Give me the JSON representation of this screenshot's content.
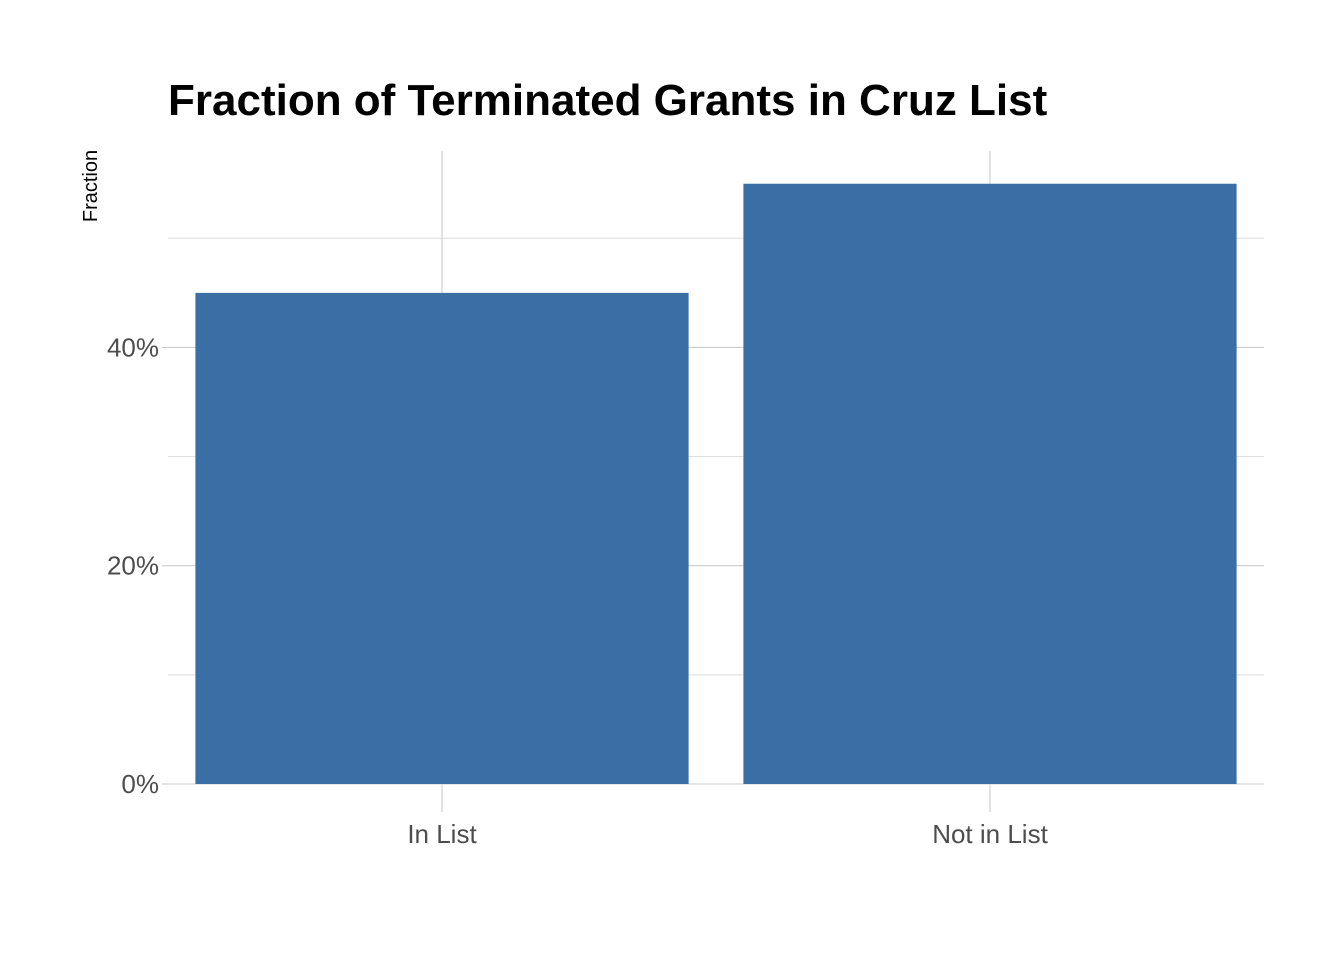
{
  "chart_data": {
    "type": "bar",
    "title": "Fraction of Terminated Grants in Cruz List",
    "xlabel": "",
    "ylabel": "Fraction",
    "categories": [
      "In List",
      "Not in List"
    ],
    "values": [
      0.45,
      0.55
    ],
    "ylim": [
      0,
      0.58
    ],
    "yticks": [
      0,
      0.2,
      0.4
    ],
    "ytick_labels": [
      "0%",
      "20%",
      "40%"
    ],
    "y_minor_ticks": [
      0.1,
      0.3,
      0.5
    ],
    "bar_color": "#3a6ea5",
    "grid": true,
    "legend": "none"
  }
}
